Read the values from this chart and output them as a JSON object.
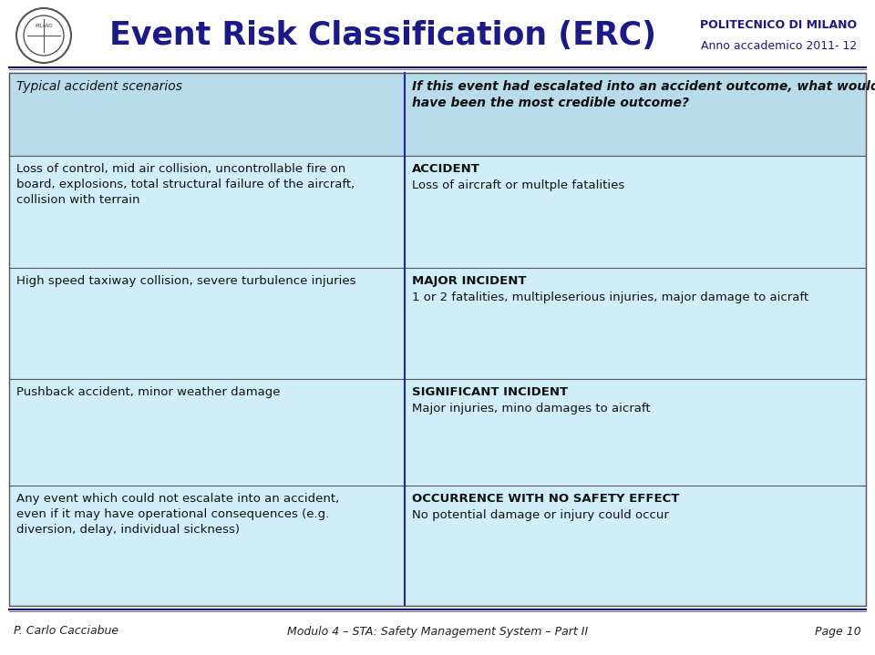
{
  "title": "Event Risk Classification (ERC)",
  "title_color": "#1a1a8c",
  "institution": "POLITECNICO DI MILANO",
  "year": "Anno accademico 2011- 12",
  "footer_left": "P. Carlo Cacciabue",
  "footer_center": "Modulo 4 – STA: Safety Management System – Part II",
  "footer_right": "Page 10",
  "bg_color": "#d0eef8",
  "header_bg": "#b8dcea",
  "table_border_color": "#444444",
  "col_divider_color": "#2222aa",
  "header_row": {
    "col1": "Typical accident scenarios",
    "col2": "If this event had escalated into an accident outcome, what would\nhave been the most credible outcome?"
  },
  "rows": [
    {
      "col1": "Loss of control, mid air collision, uncontrollable fire on\nboard, explosions, total structural failure of the aircraft,\ncollision with terrain",
      "col2_title": "ACCIDENT",
      "col2_body": "Loss of aircraft or multple fatalities"
    },
    {
      "col1": "High speed taxiway collision, severe turbulence injuries",
      "col2_title": "MAJOR INCIDENT",
      "col2_body": "1 or 2 fatalities, multipleserious injuries, major damage to aicraft"
    },
    {
      "col1": "Pushback accident, minor weather damage",
      "col2_title": "SIGNIFICANT INCIDENT",
      "col2_body": "Major injuries, mino damages to aicraft"
    },
    {
      "col1": "Any event which could not escalate into an accident,\neven if it may have operational consequences (e.g.\ndiversion, delay, individual sickness)",
      "col2_title": "OCCURRENCE WITH NO SAFETY EFFECT",
      "col2_body": "No potential damage or injury could occur"
    }
  ]
}
